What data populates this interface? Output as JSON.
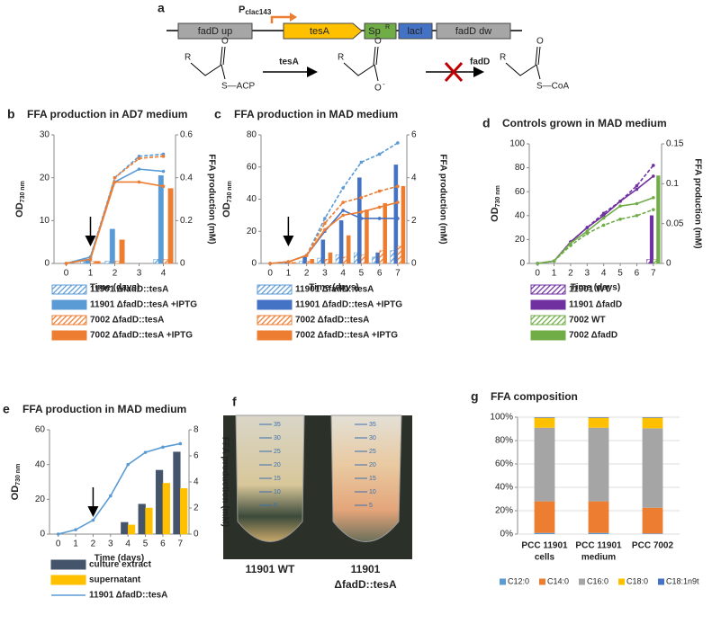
{
  "diagram": {
    "panel": "a",
    "genes": [
      "fadD up",
      "tesA",
      "Sp",
      "lacI",
      "fadD dw"
    ],
    "sp_sup": "R",
    "promoter": "P",
    "promoter_sub": "clac143",
    "reaction": {
      "r": "R",
      "o": "O",
      "acp": "S—ACP",
      "enzyme1": "tesA",
      "minus": "-",
      "enzyme2": "fadD",
      "coa": "S—CoA"
    }
  },
  "photo": {
    "panel": "f",
    "scale": [
      35,
      30,
      25,
      20,
      15,
      10,
      5
    ],
    "labels": [
      [
        "11901 WT"
      ],
      [
        "11901",
        "ΔfadD::tesA"
      ]
    ]
  },
  "chart_data": [
    {
      "panel": "b",
      "type": "combo",
      "title": "FFA production in AD7 medium",
      "x_label": "Time (days)",
      "y_label": "OD",
      "y_label_sub": "730 nm",
      "y2_label": "FFA production (mM)",
      "x": [
        0,
        1,
        2,
        3,
        4
      ],
      "xlim": [
        -0.5,
        4.5
      ],
      "xticks": [
        0,
        1,
        2,
        3,
        4
      ],
      "ylim": [
        0,
        30
      ],
      "yticks": [
        0,
        10,
        20,
        30
      ],
      "y2lim": [
        0,
        0.6
      ],
      "y2ticks": [
        0,
        0.2,
        0.4,
        0.6
      ],
      "arrow_day": 1,
      "series": [
        {
          "name": "11901 ΔfadD::tesA",
          "color": "#5b9bd5",
          "dashed": true,
          "hatched": true,
          "values": [
            0,
            1.5,
            20,
            25,
            25.5
          ],
          "y2_values": [
            null,
            0.01,
            0.01,
            null,
            0.02
          ]
        },
        {
          "name": "11901 ΔfadD::tesA +IPTG",
          "color": "#5b9bd5",
          "dashed": false,
          "hatched": false,
          "values": [
            0,
            1.5,
            19,
            22,
            21.5
          ],
          "y2_values": [
            null,
            0.02,
            0.16,
            null,
            0.41
          ]
        },
        {
          "name": "7002 ΔfadD::tesA",
          "color": "#ed7d31",
          "dashed": true,
          "hatched": true,
          "values": [
            0,
            1,
            20,
            24.5,
            25
          ],
          "y2_values": [
            null,
            0.01,
            0.01,
            null,
            0.02
          ]
        },
        {
          "name": "7002 ΔfadD::tesA +IPTG",
          "color": "#ed7d31",
          "dashed": false,
          "hatched": false,
          "values": [
            0,
            1,
            19,
            19,
            18
          ],
          "y2_values": [
            null,
            0.01,
            0.11,
            null,
            0.35
          ]
        }
      ]
    },
    {
      "panel": "c",
      "type": "combo",
      "title": "FFA production in MAD medium",
      "x_label": "Time (days)",
      "y_label": "OD",
      "y_label_sub": "730 nm",
      "y2_label": "FFA production (mM)",
      "x": [
        0,
        1,
        2,
        3,
        4,
        5,
        6,
        7
      ],
      "xlim": [
        -0.5,
        7.5
      ],
      "xticks": [
        0,
        1,
        2,
        3,
        4,
        5,
        6,
        7
      ],
      "ylim": [
        0,
        80
      ],
      "yticks": [
        0,
        20,
        40,
        60,
        80
      ],
      "y2lim": [
        0,
        6
      ],
      "y2ticks": [
        0,
        2,
        4,
        6
      ],
      "arrow_day": 1,
      "series": [
        {
          "name": "11901 ΔfadD::tesA",
          "color": "#5b9bd5",
          "dashed": true,
          "hatched": true,
          "values": [
            0,
            1,
            5,
            28,
            47,
            63,
            68,
            75
          ],
          "y2_values": [
            null,
            0.05,
            0.1,
            0.25,
            0.4,
            0.5,
            0.3,
            0.6
          ]
        },
        {
          "name": "11901 ΔfadD::tesA +IPTG",
          "color": "#4472c4",
          "dashed": false,
          "hatched": false,
          "values": [
            0,
            1,
            5,
            20,
            33,
            28,
            28,
            28
          ],
          "y2_values": [
            null,
            0.05,
            0.3,
            1.1,
            2,
            4,
            0.5,
            4.6
          ]
        },
        {
          "name": "7002 ΔfadD::tesA",
          "color": "#ed7d31",
          "dashed": true,
          "hatched": true,
          "values": [
            0,
            1,
            5,
            25,
            38,
            41,
            45,
            48
          ],
          "y2_values": [
            null,
            0.05,
            0.1,
            0.2,
            0.3,
            0.4,
            0.6,
            0.8
          ]
        },
        {
          "name": "7002 ΔfadD::tesA +IPTG",
          "color": "#ed7d31",
          "dashed": false,
          "hatched": false,
          "values": [
            0,
            1,
            5,
            21,
            30,
            32,
            35,
            38
          ],
          "y2_values": [
            null,
            0.05,
            0.2,
            0.5,
            1.3,
            2.5,
            2.8,
            3.6
          ]
        }
      ]
    },
    {
      "panel": "d",
      "type": "combo",
      "title": "Controls grown in MAD medium",
      "x_label": "Time (days)",
      "y_label": "OD",
      "y_label_sub": "730 nm",
      "y2_label": "FFA production (mM)",
      "x": [
        0,
        1,
        2,
        3,
        4,
        5,
        6,
        7
      ],
      "xlim": [
        -0.5,
        7.5
      ],
      "xticks": [
        0,
        1,
        2,
        3,
        4,
        5,
        6,
        7
      ],
      "ylim": [
        0,
        100
      ],
      "yticks": [
        0,
        20,
        40,
        60,
        80,
        100
      ],
      "y2lim": [
        0,
        0.15
      ],
      "y2ticks": [
        0,
        0.05,
        0.1,
        0.15
      ],
      "series": [
        {
          "name": "11901 WT",
          "color": "#7030a0",
          "dashed": true,
          "hatched": true,
          "values": [
            0,
            2,
            18,
            30,
            42,
            52,
            65,
            82
          ],
          "y2_values": [
            null,
            null,
            null,
            null,
            null,
            null,
            null,
            0.005
          ]
        },
        {
          "name": "11901 ΔfadD",
          "color": "#7030a0",
          "dashed": false,
          "hatched": false,
          "values": [
            0,
            2,
            18,
            30,
            40,
            52,
            62,
            73
          ],
          "y2_values": [
            null,
            null,
            null,
            null,
            null,
            null,
            null,
            0.06
          ]
        },
        {
          "name": "7002 WT",
          "color": "#70ad47",
          "dashed": true,
          "hatched": true,
          "values": [
            0,
            2,
            15,
            25,
            32,
            37,
            40,
            45
          ],
          "y2_values": [
            null,
            null,
            null,
            null,
            null,
            null,
            null,
            0.005
          ]
        },
        {
          "name": "7002 ΔfadD",
          "color": "#70ad47",
          "dashed": false,
          "hatched": false,
          "values": [
            0,
            2,
            17,
            27,
            38,
            48,
            50,
            55
          ],
          "y2_values": [
            null,
            null,
            null,
            null,
            null,
            null,
            null,
            0.11
          ]
        }
      ]
    },
    {
      "panel": "e",
      "type": "combo",
      "title": "FFA production in MAD medium",
      "x_label": "Time (days)",
      "y_label": "OD",
      "y_label_sub": "730 nm",
      "y2_label": "FFA production (mM)",
      "x": [
        0,
        1,
        2,
        3,
        4,
        5,
        6,
        7
      ],
      "xlim": [
        -0.5,
        7.5
      ],
      "xticks": [
        0,
        1,
        2,
        3,
        4,
        5,
        6,
        7
      ],
      "ylim": [
        0,
        60
      ],
      "yticks": [
        0,
        20,
        40,
        60
      ],
      "y2lim": [
        0,
        8
      ],
      "y2ticks": [
        0,
        2,
        4,
        6,
        8
      ],
      "arrow_day": 2,
      "series": [
        {
          "name": "culture extract",
          "color": "#44546a",
          "hatched": false,
          "y2_values": [
            null,
            null,
            null,
            null,
            0.9,
            2.3,
            4.9,
            6.3
          ]
        },
        {
          "name": "supernatant",
          "color": "#ffc000",
          "hatched": false,
          "y2_values": [
            null,
            null,
            null,
            null,
            0.7,
            2,
            3.9,
            3.5
          ]
        },
        {
          "name": "11901 ΔfadD::tesA",
          "color": "#5b9bd5",
          "dashed": false,
          "values": [
            0,
            2.5,
            8,
            22,
            40,
            47,
            50,
            52
          ]
        }
      ]
    },
    {
      "panel": "g",
      "type": "stacked_bar",
      "title": "FFA composition",
      "categories": [
        [
          "PCC 11901",
          "cells"
        ],
        [
          "PCC 11901",
          "medium"
        ],
        [
          "PCC 7002"
        ]
      ],
      "ylim": [
        0,
        100
      ],
      "yticks": [
        {
          "value": 0,
          "label": "0%"
        },
        {
          "value": 20,
          "label": "20%"
        },
        {
          "value": 40,
          "label": "40%"
        },
        {
          "value": 60,
          "label": "60%"
        },
        {
          "value": 80,
          "label": "80%"
        },
        {
          "value": 100,
          "label": "100%"
        }
      ],
      "series": [
        {
          "name": "C12:0",
          "color": "#5b9bd5",
          "values": [
            1,
            1,
            0.5
          ]
        },
        {
          "name": "C14:0",
          "color": "#ed7d31",
          "values": [
            27,
            27,
            22
          ]
        },
        {
          "name": "C16:0",
          "color": "#a5a5a5",
          "values": [
            63,
            63,
            68
          ]
        },
        {
          "name": "C18:0",
          "color": "#ffc000",
          "values": [
            8.5,
            8.5,
            9
          ]
        },
        {
          "name": "C18:1n9t",
          "color": "#4472c4",
          "values": [
            0.5,
            0.5,
            0.5
          ]
        }
      ]
    }
  ]
}
